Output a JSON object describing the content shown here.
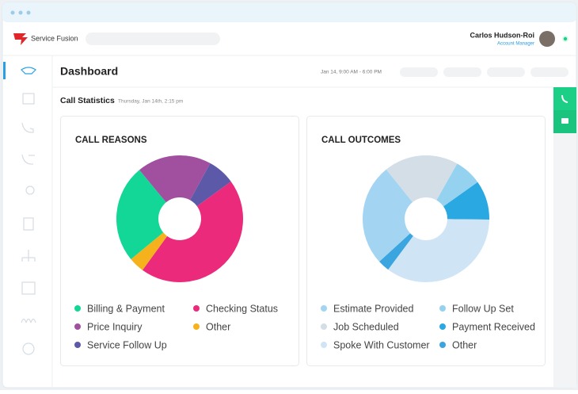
{
  "header": {
    "brand": "Service Fusion",
    "user_name": "Carlos Hudson-Roi",
    "user_role": "Account Manager"
  },
  "page": {
    "title": "Dashboard",
    "date_range": "Jan 14, 9:00 AM - 6:00 PM",
    "section_title": "Call Statistics",
    "section_subtitle": "Thursday, Jan 14th, 2:15 pm"
  },
  "chart_data": [
    {
      "type": "pie",
      "title": "CALL REASONS",
      "categories": [
        "Billing & Payment",
        "Checking Status",
        "Price Inquiry",
        "Other",
        "Service Follow Up"
      ],
      "values": [
        25,
        45,
        19,
        4,
        7
      ],
      "colors": [
        "#12d796",
        "#ec2a7b",
        "#a0509f",
        "#f5b21d",
        "#5b59a8"
      ]
    },
    {
      "type": "pie",
      "title": "CALL OUTCOMES",
      "categories": [
        "Estimate Provided",
        "Follow Up Set",
        "Job Scheduled",
        "Payment Received",
        "Spoke With Customer",
        "Other"
      ],
      "values": [
        26,
        7,
        19,
        10,
        35,
        3
      ],
      "colors": [
        "#a3d5f2",
        "#95d2f0",
        "#d3dee7",
        "#29a8e2",
        "#cfe5f6",
        "#3aa5de"
      ]
    }
  ]
}
